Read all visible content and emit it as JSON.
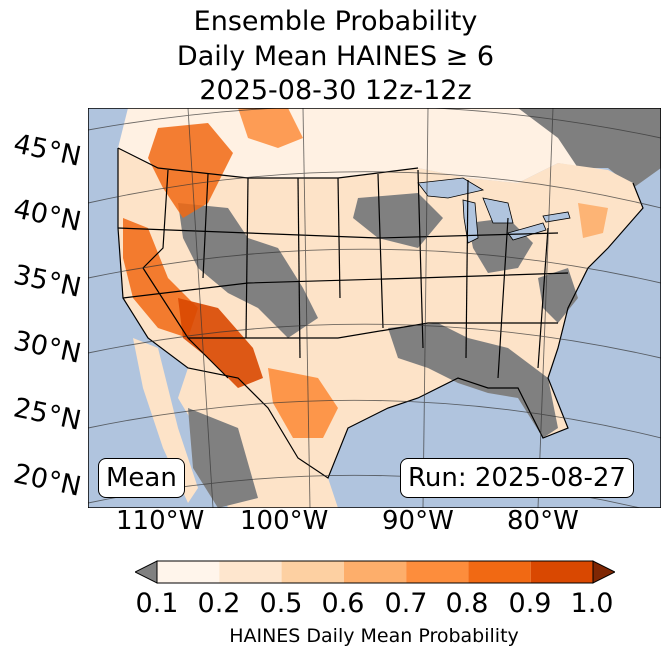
{
  "title": {
    "line1": "Ensemble Probability",
    "line2": "Daily Mean HAINES ≥ 6",
    "line3": "2025-08-30 12z-12z"
  },
  "latitude_labels": [
    "45°N",
    "40°N",
    "35°N",
    "30°N",
    "25°N",
    "20°N"
  ],
  "longitude_labels": [
    "110°W",
    "100°W",
    "90°W",
    "80°W"
  ],
  "stat_label": "Mean",
  "run_label": "Run: 2025-08-27",
  "colorbar": {
    "ticks": [
      "0.1",
      "0.2",
      "0.5",
      "0.6",
      "0.7",
      "0.8",
      "0.9",
      "1.0"
    ],
    "label": "HAINES Daily Mean Probability",
    "under_color": "#808080",
    "over_color": "#7f2704",
    "colors": [
      "#fff5eb",
      "#fee6ce",
      "#fdd0a2",
      "#fdae6b",
      "#fd8d3c",
      "#f16913",
      "#d94801"
    ]
  },
  "colors": {
    "ocean": "#b0c4de",
    "land_low": "#808080"
  }
}
